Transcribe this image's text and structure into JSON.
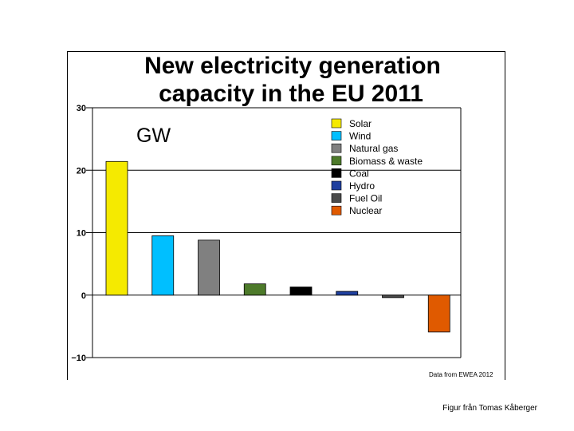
{
  "chart_data": {
    "type": "bar",
    "title_line1": "New electricity generation",
    "title_line2": "capacity in the EU 2011",
    "unit_label": "GW",
    "categories": [
      "Solar",
      "Wind",
      "Natural gas",
      "Biomass & waste",
      "Coal",
      "Hydro",
      "Fuel Oil",
      "Nuclear"
    ],
    "values": [
      21.4,
      9.5,
      8.8,
      1.8,
      1.3,
      0.6,
      -0.4,
      -5.9
    ],
    "colors": [
      "#f5ea00",
      "#00bfff",
      "#808080",
      "#4d7a2a",
      "#000000",
      "#1f3f9e",
      "#4a4a4a",
      "#e05a00"
    ],
    "ylim": [
      -10,
      30
    ],
    "yticks": [
      30,
      20,
      10,
      0,
      -10
    ],
    "ytick_labels": [
      "30",
      "20",
      "10",
      "0",
      "−10"
    ],
    "legend_position": "top-right",
    "grid": true,
    "source_note": "Data from EWEA 2012"
  },
  "caption": "Figur från Tomas Kåberger"
}
